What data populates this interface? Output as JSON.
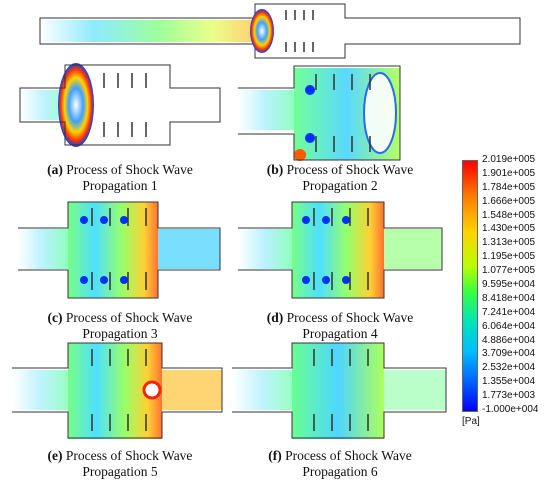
{
  "figure": {
    "captions": [
      {
        "letter": "(a)",
        "line1": "Process of Shock Wave",
        "line2": "Propagation 1"
      },
      {
        "letter": "(b)",
        "line1": "Process of Shock Wave",
        "line2": "Propagation 2"
      },
      {
        "letter": "(c)",
        "line1": "Process of Shock Wave",
        "line2": "Propagation 3"
      },
      {
        "letter": "(d)",
        "line1": "Process of Shock Wave",
        "line2": "Propagation 4"
      },
      {
        "letter": "(e)",
        "line1": "Process of Shock Wave",
        "line2": "Propagation 5"
      },
      {
        "letter": "(f)",
        "line1": "Process of Shock Wave",
        "line2": "Propagation 6"
      }
    ],
    "legend": {
      "labels": [
        "2.019e+005",
        "1.901e+005",
        "1.784e+005",
        "1.666e+005",
        "1.548e+005",
        "1.430e+005",
        "1.313e+005",
        "1.195e+005",
        "1.077e+005",
        "9.595e+004",
        "8.418e+004",
        "7.241e+004",
        "6.064e+004",
        "4.886e+004",
        "3.709e+004",
        "2.532e+004",
        "1.355e+004",
        "1.773e+003",
        "-1.000e+004"
      ],
      "unit": "[Pa]"
    }
  }
}
